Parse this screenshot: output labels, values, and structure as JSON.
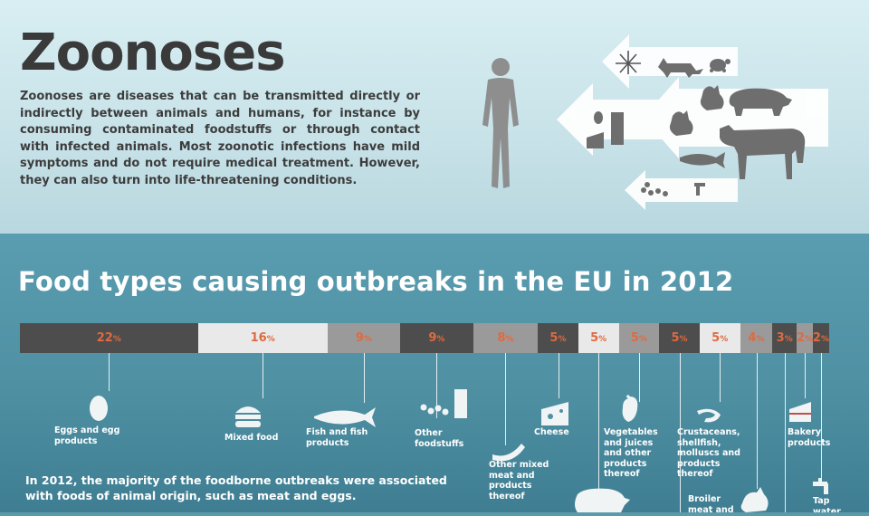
{
  "header": {
    "title": "Zoonoses",
    "intro": "Zoonoses are diseases that can be transmitted directly or indirectly between animals and humans, for instance by consuming contaminated foodstuffs or through contact with infected animals. Most zoonotic infections have mild symptoms and do not require medical treatment. However, they can also turn into life-threatening conditions."
  },
  "colors": {
    "dark": "#4d4d4d",
    "light": "#e9e9e9",
    "mid": "#9a9a9a",
    "value_text": "#e06a3f",
    "title": "#3a3a3a"
  },
  "icons": [
    "human-figure-icon",
    "mosquito-icon",
    "fox-icon",
    "turtle-icon",
    "pig-icon",
    "chicken-icon",
    "cow-icon",
    "fish-icon",
    "egg-icon",
    "milk-carton-icon",
    "cheese-icon",
    "berries-icon",
    "tap-icon"
  ],
  "chart_data": {
    "type": "bar",
    "title": "Food types causing outbreaks in the EU in 2012",
    "unit": "%",
    "categories": [
      "Eggs and egg products",
      "Mixed food",
      "Fish and fish products",
      "Other foodstuffs",
      "Other mixed meat and products thereof",
      "Cheese",
      "",
      "Vegetables and juices and other products thereof",
      "",
      "Crustaceans, shellfish, molluscs and products thereof",
      "Broiler meat and products",
      "",
      "Bakery products",
      "Tap water"
    ],
    "values": [
      22,
      16,
      9,
      9,
      8,
      5,
      5,
      5,
      5,
      5,
      4,
      3,
      2,
      2
    ],
    "shades": [
      "dark",
      "light",
      "mid",
      "dark",
      "mid",
      "dark",
      "light",
      "mid",
      "dark",
      "light",
      "mid",
      "dark",
      "mid",
      "dark"
    ]
  },
  "summary": "In 2012, the majority of the foodborne outbreaks were associated with foods of animal origin, such as meat and eggs."
}
